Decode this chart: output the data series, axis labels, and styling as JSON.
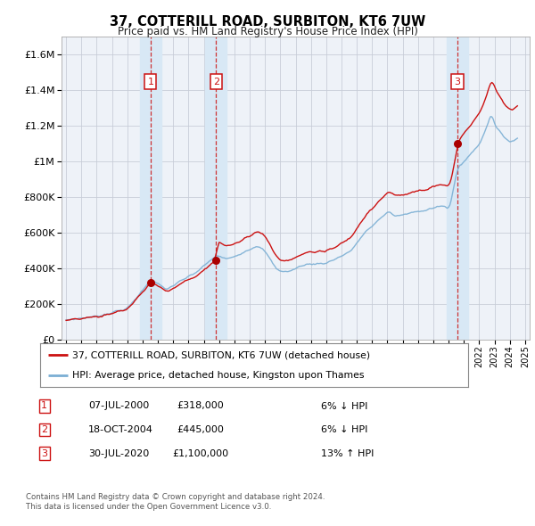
{
  "title": "37, COTTERILL ROAD, SURBITON, KT6 7UW",
  "subtitle": "Price paid vs. HM Land Registry's House Price Index (HPI)",
  "legend_line1": "37, COTTERILL ROAD, SURBITON, KT6 7UW (detached house)",
  "legend_line2": "HPI: Average price, detached house, Kingston upon Thames",
  "footer1": "Contains HM Land Registry data © Crown copyright and database right 2024.",
  "footer2": "This data is licensed under the Open Government Licence v3.0.",
  "transactions": [
    {
      "num": 1,
      "date": "07-JUL-2000",
      "price": "£318,000",
      "hpi": "6% ↓ HPI",
      "x_year": 2000.52
    },
    {
      "num": 2,
      "date": "18-OCT-2004",
      "price": "£445,000",
      "hpi": "6% ↓ HPI",
      "x_year": 2004.8
    },
    {
      "num": 3,
      "date": "30-JUL-2020",
      "price": "£1,100,000",
      "hpi": "13% ↑ HPI",
      "x_year": 2020.58
    }
  ],
  "sale_prices": [
    318000,
    445000,
    1100000
  ],
  "sale_years": [
    2000.52,
    2004.8,
    2020.58
  ],
  "ylim": [
    0,
    1700000
  ],
  "yticks": [
    0,
    200000,
    400000,
    600000,
    800000,
    1000000,
    1200000,
    1400000,
    1600000
  ],
  "ytick_labels": [
    "£0",
    "£200K",
    "£400K",
    "£600K",
    "£800K",
    "£1M",
    "£1.2M",
    "£1.4M",
    "£1.6M"
  ],
  "xlim_start": 1994.7,
  "xlim_end": 2025.3,
  "background_color": "#ffffff",
  "plot_bg_color": "#eef2f8",
  "grid_color": "#c8cdd8",
  "hpi_color": "#7bafd4",
  "price_color": "#cc1111",
  "sale_dot_color": "#aa0000",
  "vline_color": "#cc1111",
  "shade_color": "#d8e8f5"
}
